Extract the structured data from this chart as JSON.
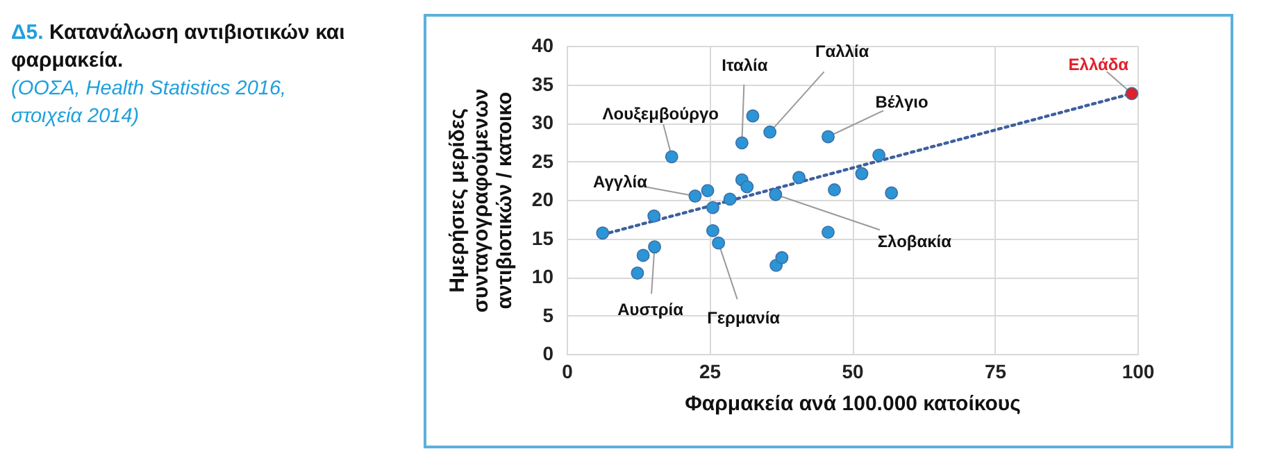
{
  "chart_data": {
    "type": "scatter",
    "title": "Δ5. Κατανάλωση αντιβιοτικών και φαρμακεία.",
    "subtitle": "(ΟΟΣΑ, Health Statistics 2016, στοιχεία 2014)",
    "xlabel": "Φαρμακεία ανά 100.000 κατοίκους",
    "ylabel": "Ημερήσιες μερίδες συνταγογραφούμενων αντιβιοτικών / κατοικο",
    "series": [
      {
        "color": "#2b95d6",
        "x": [
          6.3,
          12.4,
          13.4,
          15.4,
          15.3,
          18.4,
          22.5,
          24.7,
          25.6,
          25.6,
          26.6,
          28.6,
          30.7,
          30.7,
          31.6,
          32.6,
          35.6,
          36.6,
          36.7,
          37.7,
          40.7,
          45.8,
          45.8,
          46.9,
          51.7,
          54.7,
          56.9
        ],
        "values": [
          15.7,
          10.5,
          12.8,
          13.9,
          17.9,
          25.6,
          20.5,
          21.2,
          19.0,
          16.0,
          14.4,
          20.1,
          27.4,
          22.6,
          21.7,
          30.9,
          28.8,
          20.7,
          11.5,
          12.5,
          22.9,
          28.2,
          15.8,
          21.3,
          23.4,
          25.8,
          20.9
        ]
      },
      {
        "color": "#e0202a",
        "x": [
          99
        ],
        "values": [
          33.8
        ]
      },
      {
        "type": "line",
        "color": "#3d5f9e",
        "line_style": "dotted",
        "marker": "none",
        "x": [
          6.3,
          99
        ],
        "values": [
          15.5,
          33.8
        ]
      }
    ],
    "xlim": [
      0,
      100
    ],
    "xticks": [
      0,
      25,
      50,
      75,
      100
    ],
    "ylim": [
      0,
      40
    ],
    "yticks": [
      0,
      5,
      10,
      15,
      20,
      25,
      30,
      35,
      40
    ],
    "grid": true,
    "marker": "circle",
    "annotations": [
      {
        "text": "Γαλλία",
        "x": 35.6,
        "y": 28.8
      },
      {
        "text": "Ιταλία",
        "x": 30.7,
        "y": 27.4
      },
      {
        "text": "Λουξεμβούργο",
        "x": 18.4,
        "y": 25.6
      },
      {
        "text": "Βέλγιο",
        "x": 45.8,
        "y": 28.2
      },
      {
        "text": "Αγγλία",
        "x": 22.5,
        "y": 20.5
      },
      {
        "text": "Σλοβακία",
        "x": 36.6,
        "y": 20.7
      },
      {
        "text": "Αυστρία",
        "x": 15.4,
        "y": 13.9
      },
      {
        "text": "Γερμανία",
        "x": 26.6,
        "y": 14.4
      },
      {
        "text": "Ελλάδα",
        "x": 99,
        "y": 33.8
      }
    ]
  }
}
